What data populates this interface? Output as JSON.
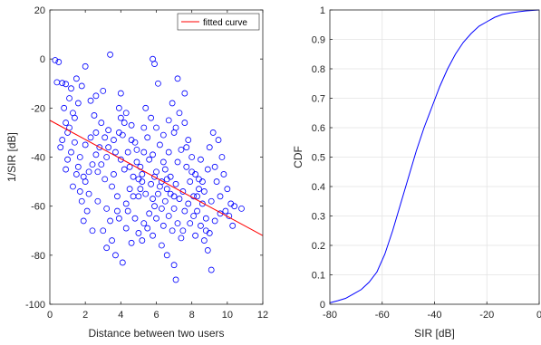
{
  "chart_data": [
    {
      "type": "scatter",
      "xlabel": "Distance between two users",
      "ylabel": "1/SIR [dB]",
      "xlim": [
        0,
        12
      ],
      "ylim": [
        -100,
        20
      ],
      "xticks": [
        "0",
        "2",
        "4",
        "6",
        "8",
        "10",
        "12"
      ],
      "yticks": [
        "-100",
        "-80",
        "-60",
        "-40",
        "-20",
        "0",
        "20"
      ],
      "grid": false,
      "legend": {
        "position": "top-right",
        "entries": [
          "fitted curve"
        ]
      },
      "colors": {
        "points": "#0000ff",
        "fit": "#ff0000"
      },
      "fit_line": {
        "x": [
          0,
          12
        ],
        "y": [
          -25,
          -72
        ]
      },
      "points": [
        [
          0.3,
          -0.5
        ],
        [
          0.5,
          -1.2
        ],
        [
          0.4,
          -9.5
        ],
        [
          0.7,
          -9.8
        ],
        [
          0.9,
          -10.2
        ],
        [
          1.2,
          -12
        ],
        [
          1.5,
          -8
        ],
        [
          1.8,
          -11
        ],
        [
          2.0,
          -3
        ],
        [
          3.4,
          1.8
        ],
        [
          5.8,
          0
        ],
        [
          5.9,
          -2
        ],
        [
          6.1,
          -10
        ],
        [
          7.2,
          -8
        ],
        [
          7.6,
          -14
        ],
        [
          2.6,
          -15
        ],
        [
          3.0,
          -13
        ],
        [
          4.0,
          -14
        ],
        [
          1.1,
          -16
        ],
        [
          1.6,
          -18
        ],
        [
          2.3,
          -17
        ],
        [
          0.8,
          -20
        ],
        [
          1.3,
          -22
        ],
        [
          0.9,
          -26
        ],
        [
          1.0,
          -30
        ],
        [
          1.4,
          -34
        ],
        [
          0.6,
          -36
        ],
        [
          1.2,
          -38
        ],
        [
          1.7,
          -40
        ],
        [
          0.9,
          -45
        ],
        [
          1.5,
          -47
        ],
        [
          2.0,
          -50
        ],
        [
          2.2,
          -55
        ],
        [
          1.8,
          -58
        ],
        [
          2.5,
          -23
        ],
        [
          2.9,
          -26
        ],
        [
          3.3,
          -29
        ],
        [
          3.6,
          -33
        ],
        [
          2.8,
          -36
        ],
        [
          3.2,
          -40
        ],
        [
          2.4,
          -43
        ],
        [
          2.7,
          -46
        ],
        [
          3.1,
          -49
        ],
        [
          3.5,
          -52
        ],
        [
          2.6,
          -30
        ],
        [
          3.9,
          -20
        ],
        [
          4.3,
          -22
        ],
        [
          4.6,
          -27
        ],
        [
          4.1,
          -31
        ],
        [
          4.8,
          -34
        ],
        [
          4.4,
          -38
        ],
        [
          4.9,
          -42
        ],
        [
          4.2,
          -45
        ],
        [
          4.7,
          -48
        ],
        [
          5.2,
          -50
        ],
        [
          4.5,
          -53
        ],
        [
          5.0,
          -56
        ],
        [
          4.3,
          -59
        ],
        [
          3.8,
          -62
        ],
        [
          3.4,
          -66
        ],
        [
          3.0,
          -70
        ],
        [
          3.5,
          -74
        ],
        [
          3.2,
          -77
        ],
        [
          3.7,
          -80
        ],
        [
          4.1,
          -83
        ],
        [
          4.6,
          -75
        ],
        [
          5.0,
          -71
        ],
        [
          5.3,
          -67
        ],
        [
          5.6,
          -63
        ],
        [
          5.9,
          -60
        ],
        [
          5.4,
          -20
        ],
        [
          5.7,
          -24
        ],
        [
          6.0,
          -28
        ],
        [
          5.5,
          -32
        ],
        [
          6.2,
          -35
        ],
        [
          5.8,
          -39
        ],
        [
          6.4,
          -42
        ],
        [
          6.0,
          -46
        ],
        [
          6.6,
          -49
        ],
        [
          6.2,
          -52
        ],
        [
          6.8,
          -55
        ],
        [
          6.5,
          -58
        ],
        [
          7.0,
          -61
        ],
        [
          6.7,
          -64
        ],
        [
          7.2,
          -67
        ],
        [
          6.9,
          -70
        ],
        [
          7.4,
          -73
        ],
        [
          6.3,
          -76
        ],
        [
          6.6,
          -80
        ],
        [
          7.0,
          -84
        ],
        [
          7.1,
          -90
        ],
        [
          9.1,
          -86
        ],
        [
          6.9,
          -18
        ],
        [
          7.3,
          -22
        ],
        [
          7.6,
          -26
        ],
        [
          7.0,
          -30
        ],
        [
          7.8,
          -33
        ],
        [
          7.4,
          -37
        ],
        [
          8.0,
          -40
        ],
        [
          7.7,
          -44
        ],
        [
          8.2,
          -47
        ],
        [
          7.9,
          -50
        ],
        [
          8.4,
          -53
        ],
        [
          8.1,
          -56
        ],
        [
          8.6,
          -59
        ],
        [
          8.3,
          -62
        ],
        [
          8.8,
          -65
        ],
        [
          8.5,
          -68
        ],
        [
          9.0,
          -71
        ],
        [
          8.7,
          -74
        ],
        [
          8.9,
          -78
        ],
        [
          9.2,
          -30
        ],
        [
          9.5,
          -33
        ],
        [
          9.0,
          -36
        ],
        [
          9.7,
          -40
        ],
        [
          9.3,
          -44
        ],
        [
          9.8,
          -47
        ],
        [
          9.4,
          -50
        ],
        [
          10.0,
          -53
        ],
        [
          9.6,
          -56
        ],
        [
          10.2,
          -59
        ],
        [
          9.9,
          -62
        ],
        [
          10.4,
          -60
        ],
        [
          10.1,
          -64
        ],
        [
          10.3,
          -68
        ],
        [
          10.8,
          -61
        ],
        [
          2.1,
          -62
        ],
        [
          1.9,
          -66
        ],
        [
          2.4,
          -70
        ],
        [
          1.6,
          -44
        ],
        [
          1.3,
          -52
        ],
        [
          2.0,
          -35
        ],
        [
          2.3,
          -32
        ],
        [
          1.1,
          -28
        ],
        [
          3.8,
          -56
        ],
        [
          3.6,
          -47
        ],
        [
          4.0,
          -41
        ],
        [
          5.1,
          -44
        ],
        [
          5.3,
          -38
        ],
        [
          5.6,
          -41
        ],
        [
          5.2,
          -47
        ],
        [
          5.7,
          -51
        ],
        [
          6.1,
          -55
        ],
        [
          5.8,
          -57
        ],
        [
          6.3,
          -61
        ],
        [
          6.0,
          -65
        ],
        [
          5.5,
          -69
        ],
        [
          4.8,
          -65
        ],
        [
          4.4,
          -62
        ],
        [
          4.7,
          -56
        ],
        [
          5.1,
          -53
        ],
        [
          6.5,
          -45
        ],
        [
          6.8,
          -48
        ],
        [
          7.1,
          -51
        ],
        [
          7.5,
          -54
        ],
        [
          7.3,
          -57
        ],
        [
          7.8,
          -59
        ],
        [
          7.6,
          -62
        ],
        [
          8.1,
          -64
        ],
        [
          7.9,
          -67
        ],
        [
          8.3,
          -56
        ],
        [
          8.6,
          -50
        ],
        [
          8.0,
          -46
        ],
        [
          7.2,
          -42
        ],
        [
          6.7,
          -38
        ],
        [
          6.4,
          -31
        ],
        [
          4.2,
          -26
        ],
        [
          3.3,
          -36
        ],
        [
          2.9,
          -43
        ],
        [
          3.7,
          -38
        ],
        [
          4.5,
          -44
        ],
        [
          5.0,
          -49
        ],
        [
          5.4,
          -55
        ],
        [
          5.9,
          -48
        ],
        [
          6.3,
          -50
        ],
        [
          6.6,
          -53
        ],
        [
          7.0,
          -56
        ],
        [
          4.9,
          -37
        ],
        [
          4.6,
          -33
        ],
        [
          3.9,
          -30
        ],
        [
          3.1,
          -32
        ],
        [
          2.6,
          -39
        ],
        [
          2.2,
          -46
        ],
        [
          1.7,
          -54
        ],
        [
          2.7,
          -58
        ],
        [
          3.2,
          -61
        ],
        [
          3.9,
          -65
        ],
        [
          4.3,
          -69
        ],
        [
          5.2,
          -74
        ],
        [
          5.8,
          -72
        ],
        [
          6.4,
          -68
        ],
        [
          7.5,
          -70
        ],
        [
          8.2,
          -72
        ],
        [
          8.8,
          -70
        ],
        [
          9.3,
          -66
        ],
        [
          9.6,
          -63
        ],
        [
          9.1,
          -58
        ],
        [
          8.7,
          -54
        ],
        [
          8.4,
          -49
        ],
        [
          8.9,
          -45
        ],
        [
          8.5,
          -41
        ],
        [
          7.7,
          -36
        ],
        [
          7.1,
          -28
        ],
        [
          6.7,
          -25
        ],
        [
          5.3,
          -28
        ],
        [
          4.0,
          -24
        ],
        [
          1.4,
          -24
        ],
        [
          0.7,
          -33
        ],
        [
          1.0,
          -41
        ],
        [
          1.9,
          -48
        ]
      ]
    },
    {
      "type": "line",
      "xlabel": "SIR [dB]",
      "ylabel": "CDF",
      "xlim": [
        -80,
        0
      ],
      "ylim": [
        0,
        1
      ],
      "xticks": [
        "-80",
        "-60",
        "-40",
        "-20",
        "0"
      ],
      "yticks": [
        "0",
        "0.1",
        "0.2",
        "0.3",
        "0.4",
        "0.5",
        "0.6",
        "0.7",
        "0.8",
        "0.9",
        "1"
      ],
      "grid": true,
      "colors": {
        "line": "#0000ff"
      },
      "x": [
        -80,
        -77,
        -74,
        -71,
        -68,
        -65,
        -62,
        -59,
        -56,
        -53,
        -50,
        -47,
        -44,
        -41,
        -38,
        -35,
        -32,
        -29,
        -26,
        -23,
        -20,
        -17,
        -14,
        -11,
        -8,
        -5,
        -2,
        0
      ],
      "y": [
        0.005,
        0.012,
        0.02,
        0.035,
        0.05,
        0.075,
        0.11,
        0.17,
        0.25,
        0.34,
        0.43,
        0.52,
        0.6,
        0.67,
        0.74,
        0.8,
        0.85,
        0.89,
        0.92,
        0.945,
        0.96,
        0.975,
        0.985,
        0.99,
        0.994,
        0.997,
        0.999,
        1.0
      ]
    }
  ]
}
